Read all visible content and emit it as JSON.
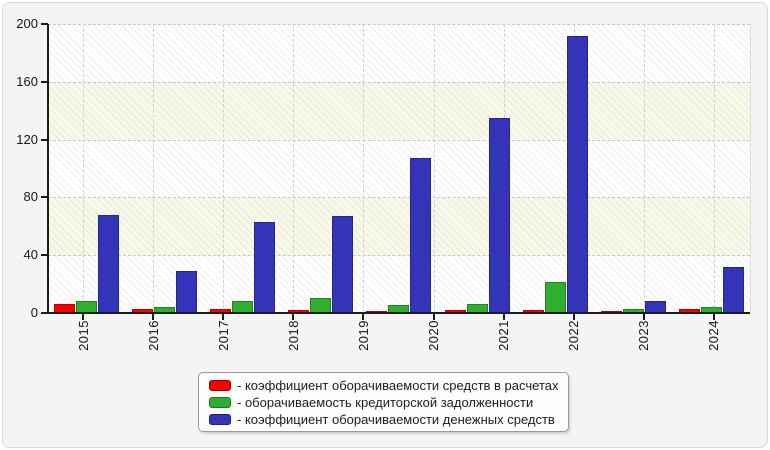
{
  "chart_data": {
    "type": "bar",
    "title": "",
    "categories": [
      "2015",
      "2016",
      "2017",
      "2018",
      "2019",
      "2020",
      "2021",
      "2022",
      "2023",
      "2024"
    ],
    "series": [
      {
        "name": "коэффициент оборачиваемости средств в расчетах",
        "color": "#f80000",
        "values": [
          6,
          3,
          3,
          2,
          1,
          2,
          2,
          1.5,
          3
        ]
      },
      {
        "name": "оборачиваемость кредиторской задолженности",
        "color": "#2fae2f",
        "values": [
          8.5,
          4,
          8.5,
          10.5,
          5.5,
          6,
          21.5,
          2.5,
          4.5
        ]
      },
      {
        "name": "коэффициент оборачиваемости денежных средств",
        "color": "#3434b8",
        "values": [
          68,
          29,
          63,
          67,
          107,
          135,
          192,
          8,
          32
        ]
      }
    ],
    "ylim": [
      0,
      200
    ],
    "yticks": [
      0,
      40,
      80,
      120,
      160,
      200
    ],
    "grid": "dashed horizontal lines at every 40 units and dashed vertical lines at each year tick",
    "background_bands": [
      "#ffffff",
      "#f9f9e9"
    ],
    "legend_position": "bottom-center",
    "note": "source image draws 9 visible bar groups drifting right of the 10 year ticks; groups spaced ~78px, ticks ~70px"
  },
  "legend": {
    "items": [
      {
        "color": "#f80000",
        "label": "- коэффициент оборачиваемости средств в расчетах"
      },
      {
        "color": "#2fae2f",
        "label": "- оборачиваемость кредиторской задолженности"
      },
      {
        "color": "#3434b8",
        "label": "- коэффициент оборачиваемости денежных средств"
      }
    ]
  }
}
